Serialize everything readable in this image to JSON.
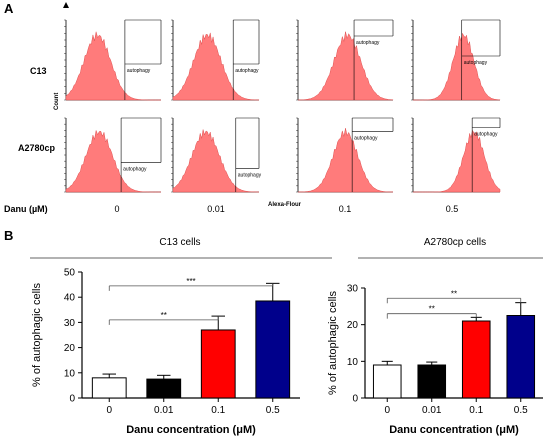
{
  "panel_a": {
    "label": "A",
    "rows": [
      "C13",
      "A2780cp"
    ],
    "y_axis_label": "Count",
    "x_axis_label": "Alexa-Flour",
    "treatment_label": "Danu (µM)",
    "columns": [
      "0",
      "0.01",
      "0.1",
      "0.5"
    ],
    "gate_label": "autophagy",
    "histogram_color": "#ff7b7b"
  },
  "panel_b": {
    "label": "B",
    "title_left": "C13 cells",
    "title_right": "A2780cp cells"
  },
  "chart_data": [
    {
      "type": "bar",
      "title": "C13 cells",
      "categories": [
        "0",
        "0.01",
        "0.1",
        "0.5"
      ],
      "values": [
        8,
        7.5,
        27,
        38.5
      ],
      "errors": [
        1.5,
        1.5,
        5.5,
        7
      ],
      "colors": [
        "#ffffff",
        "#000000",
        "#ff0000",
        "#00008b"
      ],
      "xlabel": "Danu concentration (μM)",
      "ylabel": "% of autophagic cells",
      "ylim": [
        0,
        50
      ],
      "yticks": [
        0,
        10,
        20,
        30,
        40,
        50
      ],
      "significance": [
        {
          "from": "0",
          "to": "0.1",
          "label": "**"
        },
        {
          "from": "0",
          "to": "0.5",
          "label": "***"
        }
      ]
    },
    {
      "type": "bar",
      "title": "A2780cp cells",
      "categories": [
        "0",
        "0.01",
        "0.1",
        "0.5"
      ],
      "values": [
        9,
        9,
        21,
        22.5
      ],
      "errors": [
        1,
        0.8,
        1,
        3.5
      ],
      "colors": [
        "#ffffff",
        "#000000",
        "#ff0000",
        "#00008b"
      ],
      "xlabel": "Danu concentration (μM)",
      "ylabel": "% of autophagic cells",
      "ylim": [
        0,
        30
      ],
      "yticks": [
        0,
        10,
        20,
        30
      ],
      "significance": [
        {
          "from": "0",
          "to": "0.1",
          "label": "**"
        },
        {
          "from": "0",
          "to": "0.5",
          "label": "**"
        }
      ]
    }
  ]
}
